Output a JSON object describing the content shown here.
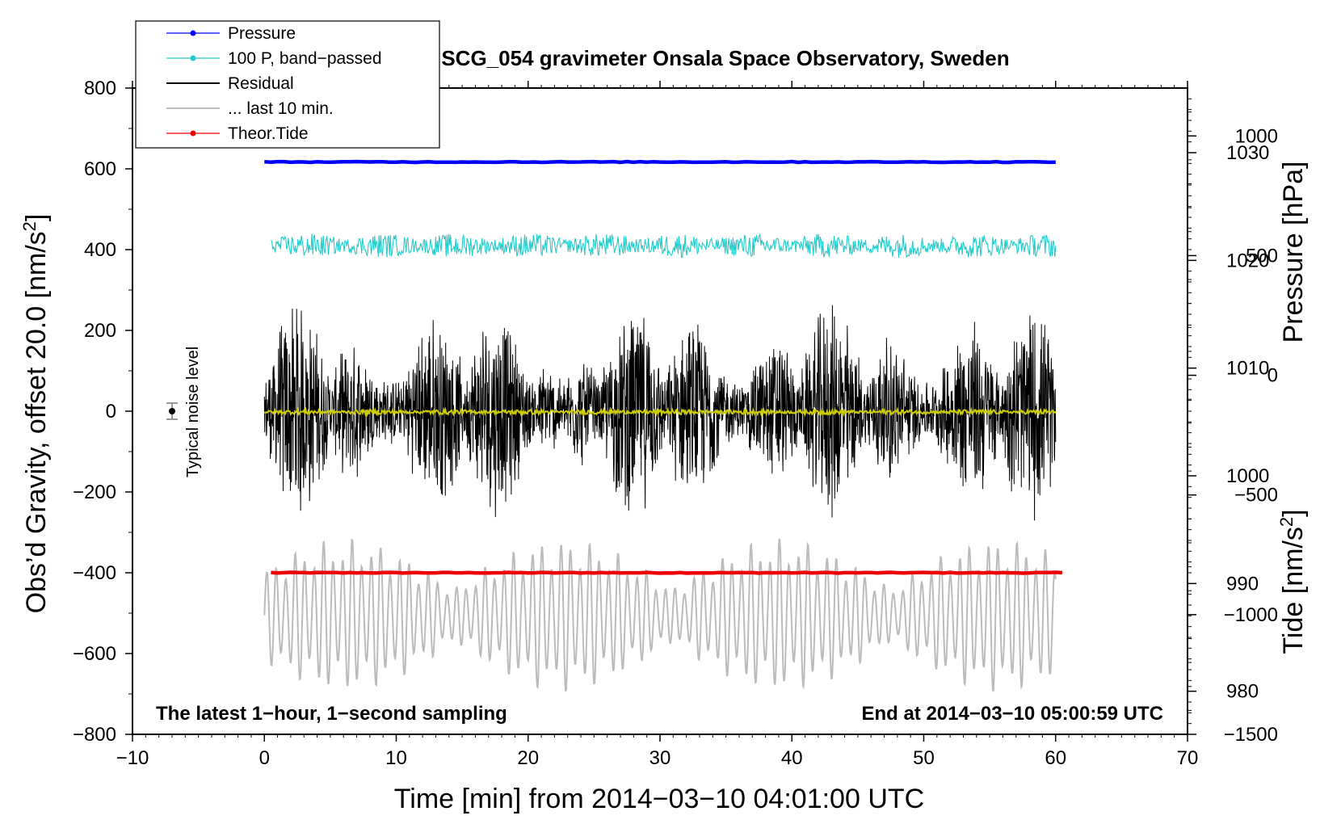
{
  "chart_data": {
    "type": "line",
    "title": "SCG_054 gravimeter Onsala Space Observatory, Sweden",
    "xlabel": "Time [min] from 2014−03−10 04:01:00 UTC",
    "ylabel_left": "Obs’d Gravity, offset 20.0 [nm/s",
    "ylabel_left_sup": "2",
    "ylabel_left_end": "]",
    "ylabel_right_top": "Pressure [hPa]",
    "ylabel_right_bottom": "Tide [nm/s",
    "ylabel_right_bottom_sup": "2",
    "ylabel_right_bottom_end": "]",
    "xlim": [
      -10,
      70
    ],
    "ylim_left": [
      -800,
      800
    ],
    "x_ticks": [
      -10,
      0,
      10,
      20,
      30,
      40,
      50,
      60,
      70
    ],
    "x_tick_labels": [
      "−10",
      "0",
      "10",
      "20",
      "30",
      "40",
      "50",
      "60",
      "70"
    ],
    "y_left_ticks": [
      800,
      600,
      400,
      200,
      0,
      -200,
      -400,
      -600,
      -800
    ],
    "y_left_tick_labels": [
      "800",
      "600",
      "400",
      "200",
      "0",
      "−200",
      "−400",
      "−600",
      "−800"
    ],
    "pressure_axis": {
      "ticks": [
        1030,
        1020,
        1010,
        1000,
        990,
        980
      ],
      "tick_labels": [
        "1030",
        "1020",
        "1010",
        "1000",
        "990",
        "980"
      ],
      "range_hpa": [
        976,
        1036
      ]
    },
    "tide_axis": {
      "ticks": [
        1000,
        500,
        0,
        -500,
        -1000,
        -1500
      ],
      "tick_labels": [
        "1000",
        "500",
        "0",
        "−500",
        "−1000",
        "−1500"
      ],
      "range": [
        -1500,
        1200
      ]
    },
    "annotation_left": "The latest 1−hour, 1−second sampling",
    "annotation_right": "End at 2014−03−10 05:00:59 UTC",
    "noise_label": "Typical noise level",
    "noise_marker": {
      "x": -7,
      "y": 0,
      "err": 20
    },
    "legend": [
      {
        "label": "Pressure",
        "color": "#0000ff",
        "marker": true
      },
      {
        "label": "100 P, band−passed",
        "color": "#22cccc",
        "marker": true
      },
      {
        "label": "Residual",
        "color": "#000000",
        "marker": false
      },
      {
        "label": "... last 10 min.",
        "color": "#bbbbbb",
        "marker": false
      },
      {
        "label": "Theor.Tide",
        "color": "#ee0000",
        "marker": true
      }
    ],
    "series": [
      {
        "name": "Pressure",
        "color": "#0000ff",
        "x_range": [
          0,
          60
        ],
        "level": 617,
        "style": "flat"
      },
      {
        "name": "100 P, band−passed",
        "color": "#22cccc",
        "x_range": [
          0.5,
          60
        ],
        "level": 410,
        "amplitude": 30,
        "style": "noise"
      },
      {
        "name": "Residual",
        "color": "#000000",
        "x_range": [
          0,
          60
        ],
        "level": 0,
        "amplitude": 290,
        "style": "bursty"
      },
      {
        "name": "Residual (smoothed)",
        "color": "#cccc00",
        "x_range": [
          0,
          60
        ],
        "level": -2,
        "amplitude": 6,
        "style": "noise"
      },
      {
        "name": "... last 10 min.",
        "color": "#bbbbbb",
        "x_range": [
          0,
          60
        ],
        "level": -505,
        "amplitude": 190,
        "style": "wave"
      },
      {
        "name": "Theor.Tide",
        "color": "#ee0000",
        "x_range": [
          0.5,
          60.5
        ],
        "level": -400,
        "style": "flat"
      }
    ]
  }
}
